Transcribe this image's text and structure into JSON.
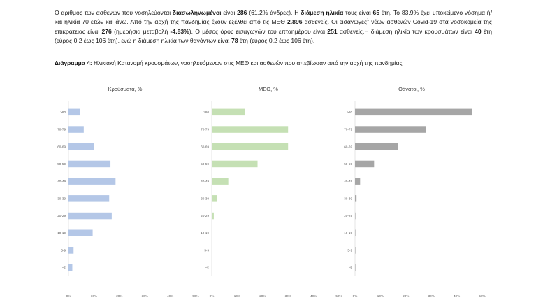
{
  "paragraph": {
    "s1a": "Ο αριθμός των ασθενών που νοσηλεύονται ",
    "s1b": "διασωληνωμένοι",
    "s1c": " είναι ",
    "s1d": "286",
    "s1e": " (61.2% άνδρες).  Η ",
    "s1f": "διάμεση ηλικία",
    "s1g": " τους είναι ",
    "s1h": "65",
    "s1i": " έτη.  Το 83.9% έχει υποκείμενο νόσημα ή/και ηλικία 70 ετών και άνω. Από την αρχή της πανδημίας έχουν εξέλθει από τις ΜΕΘ ",
    "s1j": "2.896",
    "s1k": " ασθενείς. Οι εισαγωγές",
    "s1sup": "1",
    "s1l": " νέων ασθενών Covid-19 στα νοσοκομεία της επικράτειας είναι ",
    "s1m": "276",
    "s1n": " (ημερήσια μεταβολή ",
    "s1o": "-4.83%",
    "s1p": "). Ο μέσος όρος εισαγωγών του επταημέρου είναι ",
    "s1q": "251",
    "s1r": " ασθενείς.Η διάμεση ηλικία των κρουσμάτων είναι ",
    "s1s": "40",
    "s1t": " έτη (εύρος 0.2 έως 106 έτη), ενώ η διάμεση ηλικία των θανόντων είναι ",
    "s1u": "78",
    "s1v": " έτη (εύρος 0.2 έως 106 έτη)."
  },
  "caption": {
    "label": "Διάγραμμα 4:",
    "text": " Ηλικιακή Κατανομή κρουσμάτων, νοσηλευόμενων στις ΜΕΘ και ασθενών που απεβίωσαν από την αρχή της πανδημίας"
  },
  "chart_data": [
    {
      "type": "bar",
      "orientation": "horizontal",
      "title": "Κρούσματα, %",
      "categories": [
        ">80",
        "70-79",
        "60-69",
        "50-59",
        "40-49",
        "30-39",
        "20-29",
        "10-19",
        "5-9",
        "<5"
      ],
      "values": [
        4.5,
        6,
        10,
        16.5,
        18.5,
        16,
        17,
        9.5,
        2,
        1.5
      ],
      "xlim": [
        0,
        50
      ],
      "xticks": [
        "0%",
        "10%",
        "20%",
        "30%",
        "40%",
        "50%"
      ],
      "color": "#b4c7e7",
      "grid": false
    },
    {
      "type": "bar",
      "orientation": "horizontal",
      "title": "ΜΕΘ, %",
      "categories": [
        ">80",
        "70-79",
        "60-69",
        "50-59",
        "40-49",
        "30-39",
        "20-29",
        "10-19",
        "5-9",
        "<5"
      ],
      "values": [
        13,
        30,
        30,
        18,
        6.5,
        2,
        0.8,
        0.2,
        0.1,
        0.1
      ],
      "xlim": [
        0,
        50
      ],
      "xticks": [
        "0%",
        "10%",
        "20%",
        "30%",
        "40%",
        "50%"
      ],
      "color": "#c5e0b4",
      "grid": false
    },
    {
      "type": "bar",
      "orientation": "horizontal",
      "title": "Θάνατοι, %",
      "categories": [
        ">80",
        "70-79",
        "60-69",
        "50-59",
        "40-49",
        "30-39",
        "20-29",
        "10-19",
        "5-9",
        "<5"
      ],
      "values": [
        46,
        28,
        17,
        7.5,
        2,
        0.6,
        0.1,
        0.1,
        0.05,
        0.05
      ],
      "xlim": [
        0,
        50
      ],
      "xticks": [
        "0%",
        "10%",
        "20%",
        "30%",
        "40%",
        "50%"
      ],
      "color": "#a6a6a6",
      "grid": false
    }
  ]
}
